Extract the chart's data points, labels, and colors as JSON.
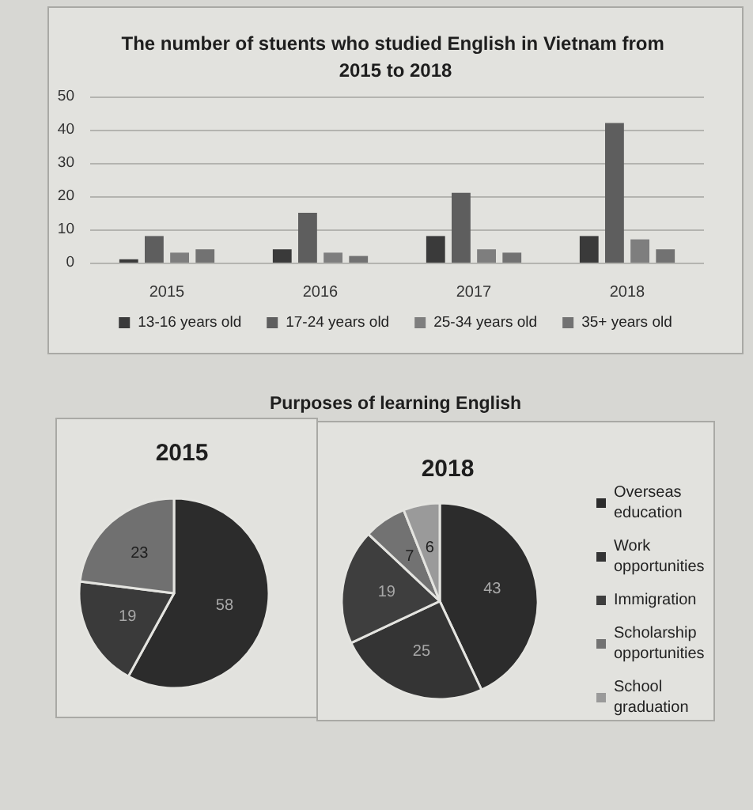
{
  "chart_data": [
    {
      "type": "bar",
      "title": "The number of stuents who studied English in Vietnam from 2015 to 2018",
      "categories": [
        "2015",
        "2016",
        "2017",
        "2018"
      ],
      "series": [
        {
          "name": "13-16 years old",
          "color": "#3a3a3a",
          "values": [
            1,
            4,
            8,
            8
          ]
        },
        {
          "name": "17-24 years old",
          "color": "#5e5e5e",
          "values": [
            8,
            15,
            21,
            42
          ]
        },
        {
          "name": "25-34 years old",
          "color": "#7e7e7e",
          "values": [
            3,
            3,
            4,
            7
          ]
        },
        {
          "name": "35+ years old",
          "color": "#727272",
          "values": [
            4,
            2,
            3,
            4
          ]
        }
      ],
      "ylim": [
        0,
        50
      ],
      "yticks": [
        0,
        10,
        20,
        30,
        40,
        50
      ],
      "grid": "y",
      "legend": "bottom"
    },
    {
      "type": "pie",
      "subtitle": "2015",
      "categories": [
        null,
        null,
        null
      ],
      "values": [
        58,
        19,
        23
      ],
      "colors": [
        "#2c2c2c",
        "#3a3a3a",
        "#707070"
      ],
      "data_labels": true
    },
    {
      "type": "pie",
      "title": "Purposes of learning English",
      "subtitle": "2018",
      "categories": [
        "Overseas education",
        "Work opportunities",
        "Immigration",
        "Scholarship opportunities",
        "School graduation"
      ],
      "values": [
        43,
        25,
        19,
        7,
        6
      ],
      "colors": [
        "#2c2c2c",
        "#343434",
        "#3e3e3e",
        "#727272",
        "#9a9a9a"
      ],
      "data_labels": true,
      "legend": "right"
    }
  ]
}
